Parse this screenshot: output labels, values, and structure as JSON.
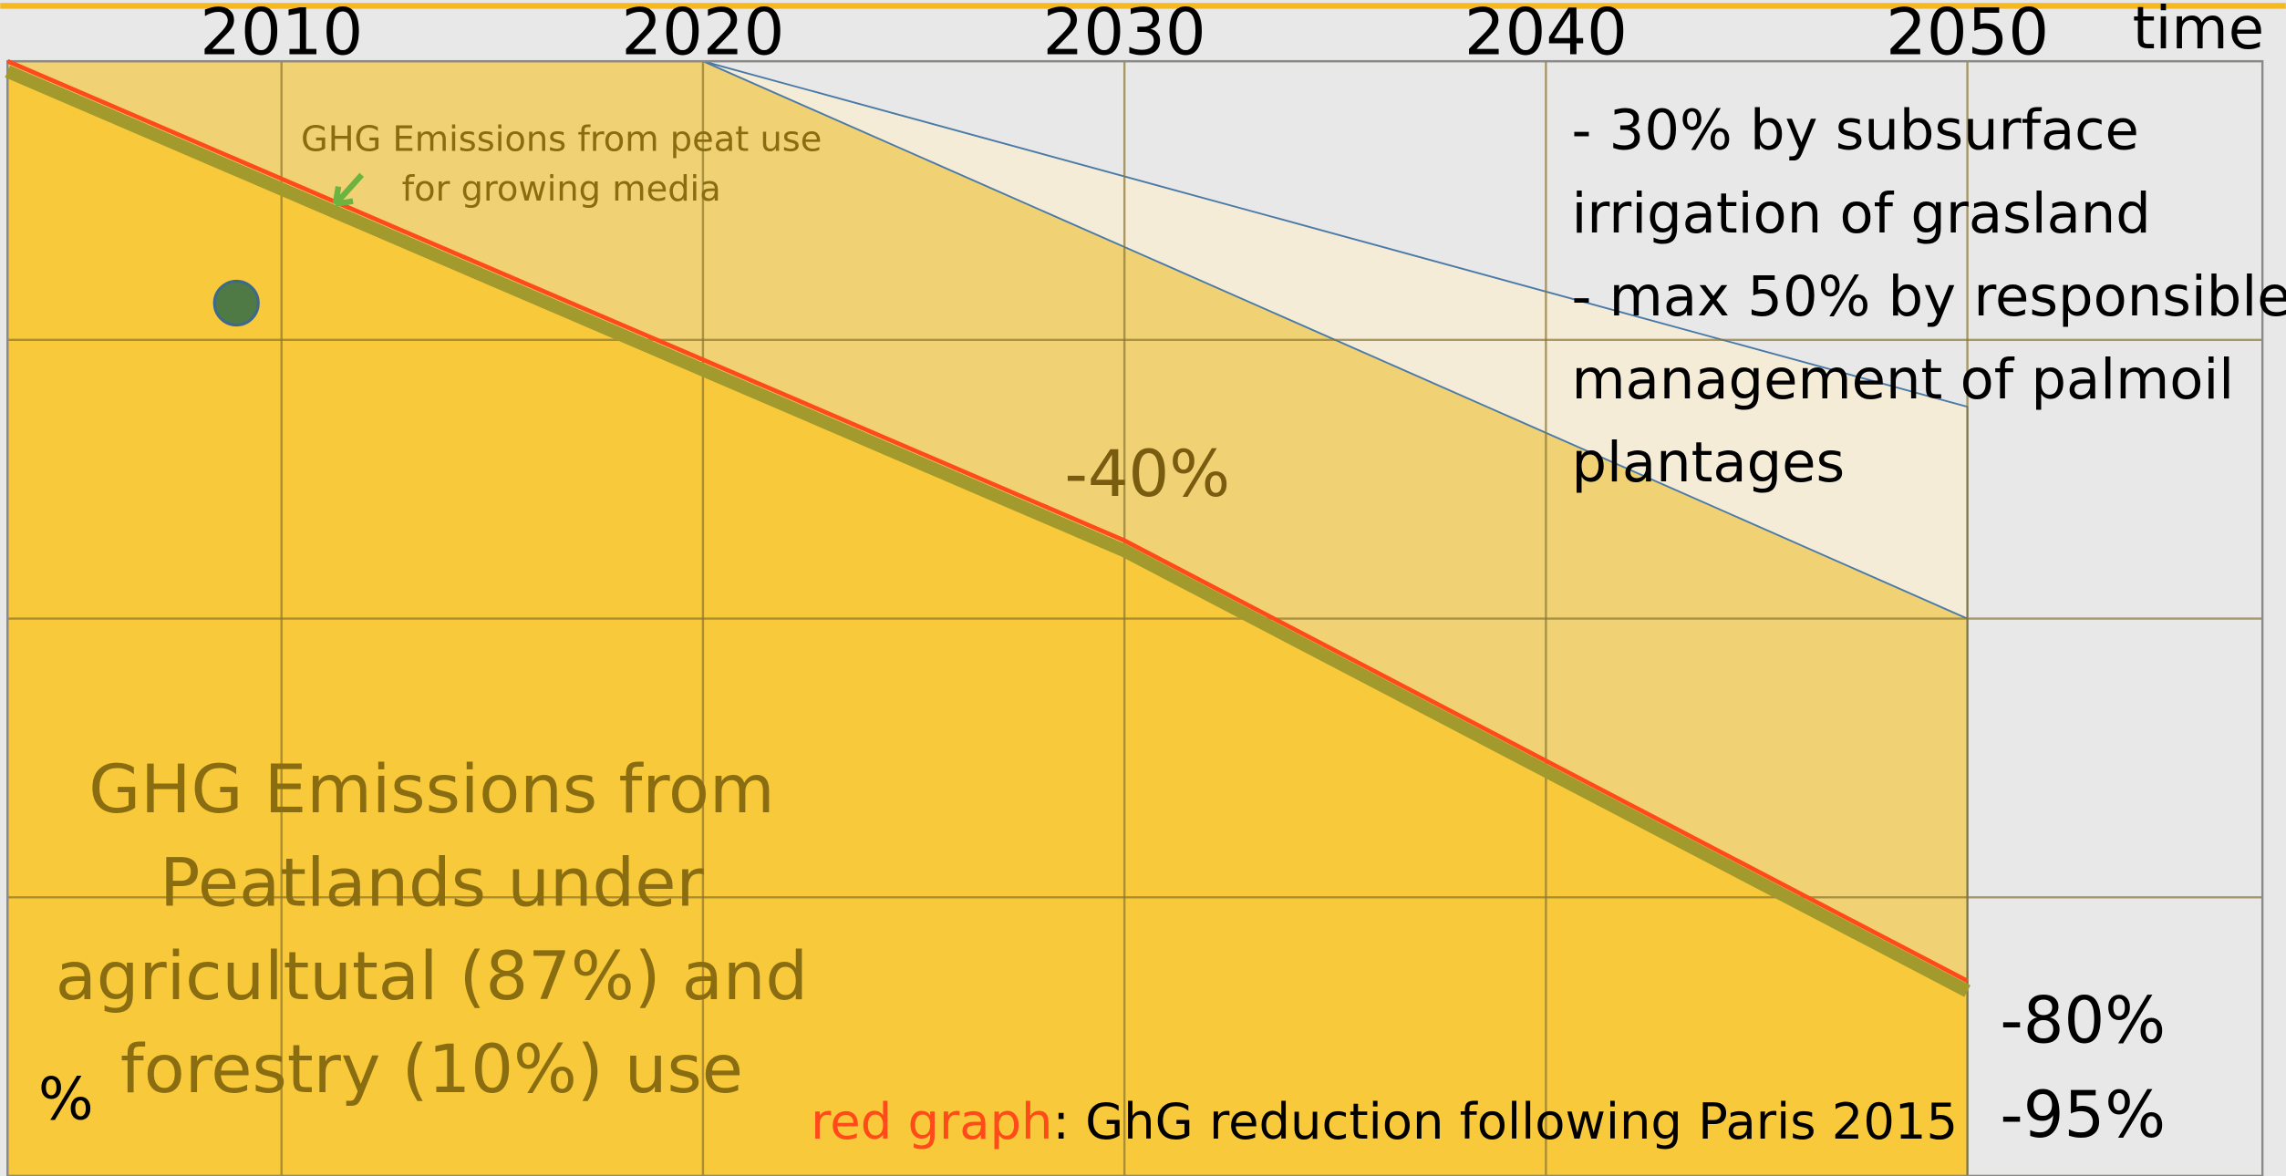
{
  "chart_data": {
    "type": "area",
    "xlabel": "time",
    "ylabel": "%",
    "xlim": [
      2003.5,
      2057
    ],
    "xticks": [
      2010,
      2020,
      2030,
      2040,
      2050
    ],
    "ylim": [
      0,
      100
    ],
    "ygrid": [
      0,
      25,
      50,
      75,
      100
    ],
    "grid": true,
    "series": [
      {
        "color": "#f5ecd8",
        "x": [
          2020,
          2050
        ],
        "values": [
          100,
          69
        ]
      },
      {
        "color": "#f0d275",
        "x": [
          2003.5,
          2020,
          2050
        ],
        "values": [
          100,
          100,
          50
        ]
      },
      {
        "color": "#f8c93a",
        "x": [
          2003.5,
          2030,
          2050
        ],
        "values": [
          99,
          56,
          16.5
        ]
      },
      {
        "name": "red graph",
        "color": "#ff4a1a",
        "x": [
          2003.5,
          2030,
          2050
        ],
        "values": [
          100,
          57,
          17.5
        ]
      }
    ],
    "legend_text": ": GhG reduction following Paris 2015",
    "annotations": {
      "peat_media": [
        "GHG Emissions from peat use",
        "for growing media"
      ],
      "mid_reduction": "-40%",
      "measures": [
        "- 30% by subsurface",
        "irrigation of grasland",
        "- max 50% by responsible",
        "management of palmoil",
        "plantages"
      ],
      "main_area": [
        "GHG Emissions from",
        "Peatlands under",
        "agricultutal (87%) and",
        "forestry (10%) use"
      ],
      "targets": [
        "-80%",
        "-95%"
      ]
    }
  }
}
